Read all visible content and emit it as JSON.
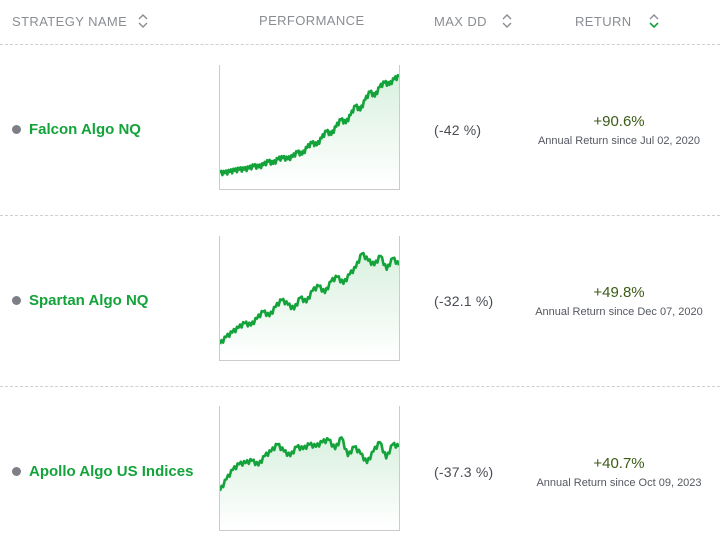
{
  "header": {
    "strategy_name": "STRATEGY NAME",
    "performance": "PERFORMANCE",
    "max_dd": "MAX DD",
    "return": "RETURN"
  },
  "colors": {
    "accent_green": "#14a33a",
    "header_text": "#8a8d93",
    "sort_active": "#14a33a"
  },
  "rows": [
    {
      "name": "Falcon Algo NQ",
      "max_dd": "(-42 %)",
      "return_value": "+90.6%",
      "return_label": "Annual Return since Jul 02, 2020",
      "performance_series": [
        0.12,
        0.12,
        0.13,
        0.14,
        0.15,
        0.15,
        0.16,
        0.18,
        0.17,
        0.19,
        0.22,
        0.2,
        0.24,
        0.25,
        0.24,
        0.26,
        0.3,
        0.28,
        0.34,
        0.38,
        0.36,
        0.42,
        0.48,
        0.45,
        0.52,
        0.58,
        0.55,
        0.62,
        0.7,
        0.66,
        0.75,
        0.82,
        0.78,
        0.86,
        0.9,
        0.88,
        0.93,
        0.95
      ]
    },
    {
      "name": "Spartan Algo NQ",
      "max_dd": "(-32.1 %)",
      "return_value": "+49.8%",
      "return_label": "Annual Return since Dec 07, 2020",
      "performance_series": [
        0.12,
        0.18,
        0.22,
        0.26,
        0.3,
        0.28,
        0.34,
        0.4,
        0.36,
        0.44,
        0.5,
        0.46,
        0.42,
        0.52,
        0.48,
        0.58,
        0.62,
        0.56,
        0.66,
        0.7,
        0.64,
        0.72,
        0.78,
        0.9,
        0.84,
        0.8,
        0.88,
        0.76,
        0.86,
        0.8
      ]
    },
    {
      "name": "Apollo Algo US Indices",
      "max_dd": "(-37.3 %)",
      "return_value": "+40.7%",
      "return_label": "Annual Return since Oct 09, 2023",
      "performance_series": [
        0.32,
        0.42,
        0.5,
        0.55,
        0.56,
        0.58,
        0.54,
        0.62,
        0.66,
        0.72,
        0.66,
        0.62,
        0.7,
        0.68,
        0.72,
        0.7,
        0.74,
        0.76,
        0.68,
        0.78,
        0.62,
        0.7,
        0.64,
        0.56,
        0.66,
        0.74,
        0.6,
        0.72,
        0.7
      ]
    }
  ]
}
